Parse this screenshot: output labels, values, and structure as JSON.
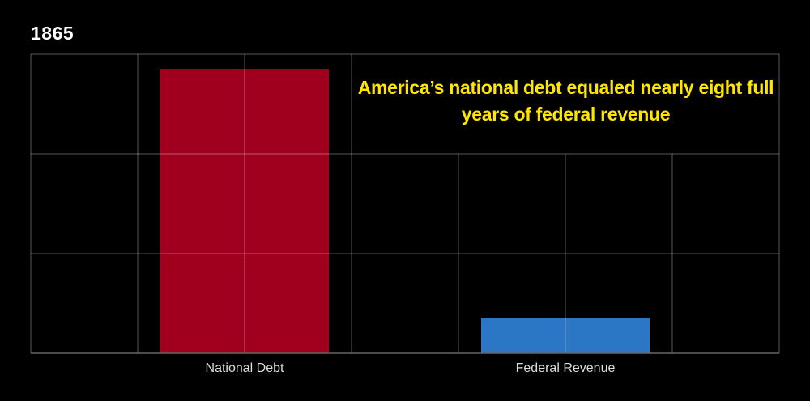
{
  "chart_data": {
    "type": "bar",
    "title": "1865",
    "annotation": "America’s national debt equaled nearly eight full years of federal revenue",
    "categories": [
      "National Debt",
      "Federal Revenue"
    ],
    "values": [
      0.951,
      0.119
    ],
    "colors": [
      "#a0001e",
      "#2b76c5"
    ],
    "ylim": [
      0,
      1
    ],
    "grid": true,
    "xlabel": "",
    "ylabel": ""
  }
}
